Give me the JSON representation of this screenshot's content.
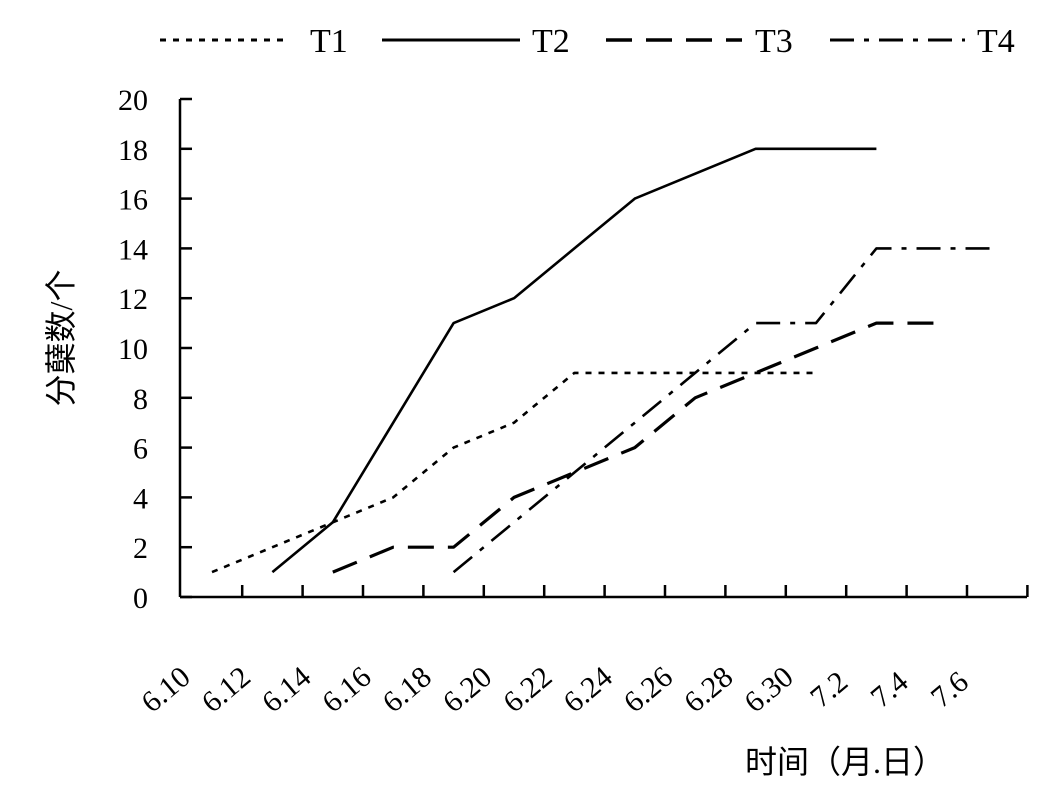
{
  "chart_data": {
    "type": "line",
    "title": "",
    "xlabel": "时间（月.日）",
    "ylabel": "分蘖数/个",
    "ylim": [
      0,
      20
    ],
    "y_ticks": [
      "0",
      "2",
      "4",
      "6",
      "8",
      "10",
      "12",
      "14",
      "16",
      "18",
      "20"
    ],
    "x_tick_labels": [
      "6.10",
      "6.12",
      "6.14",
      "6.16",
      "6.18",
      "6.20",
      "6.22",
      "6.24",
      "6.26",
      "6.28",
      "6.30",
      "7.2",
      "7.4",
      "7.6"
    ],
    "legend_position": "top",
    "grid": false,
    "series": [
      {
        "name": "T1",
        "style": "dotted",
        "color": "#000000",
        "points": [
          {
            "x": "6.11",
            "y": 1
          },
          {
            "x": "6.13",
            "y": 2
          },
          {
            "x": "6.15",
            "y": 3
          },
          {
            "x": "6.17",
            "y": 4
          },
          {
            "x": "6.19",
            "y": 6
          },
          {
            "x": "6.21",
            "y": 7
          },
          {
            "x": "6.23",
            "y": 9
          },
          {
            "x": "6.25",
            "y": 9
          },
          {
            "x": "6.27",
            "y": 9
          },
          {
            "x": "6.29",
            "y": 9
          },
          {
            "x": "7.1",
            "y": 9
          }
        ]
      },
      {
        "name": "T2",
        "style": "solid",
        "color": "#000000",
        "points": [
          {
            "x": "6.13",
            "y": 1
          },
          {
            "x": "6.15",
            "y": 3
          },
          {
            "x": "6.17",
            "y": 7
          },
          {
            "x": "6.19",
            "y": 11
          },
          {
            "x": "6.21",
            "y": 12
          },
          {
            "x": "6.23",
            "y": 14
          },
          {
            "x": "6.25",
            "y": 16
          },
          {
            "x": "6.27",
            "y": 17
          },
          {
            "x": "6.29",
            "y": 18
          },
          {
            "x": "7.1",
            "y": 18
          },
          {
            "x": "7.3",
            "y": 18
          }
        ]
      },
      {
        "name": "T3",
        "style": "dashed",
        "color": "#000000",
        "points": [
          {
            "x": "6.15",
            "y": 1
          },
          {
            "x": "6.17",
            "y": 2
          },
          {
            "x": "6.19",
            "y": 2
          },
          {
            "x": "6.21",
            "y": 4
          },
          {
            "x": "6.23",
            "y": 5
          },
          {
            "x": "6.25",
            "y": 6
          },
          {
            "x": "6.27",
            "y": 8
          },
          {
            "x": "6.29",
            "y": 9
          },
          {
            "x": "7.1",
            "y": 10
          },
          {
            "x": "7.3",
            "y": 11
          },
          {
            "x": "7.5",
            "y": 11
          }
        ]
      },
      {
        "name": "T4",
        "style": "dashdot",
        "color": "#000000",
        "points": [
          {
            "x": "6.19",
            "y": 1
          },
          {
            "x": "6.21",
            "y": 3
          },
          {
            "x": "6.23",
            "y": 5
          },
          {
            "x": "6.25",
            "y": 7
          },
          {
            "x": "6.27",
            "y": 9
          },
          {
            "x": "6.29",
            "y": 11
          },
          {
            "x": "7.1",
            "y": 11
          },
          {
            "x": "7.3",
            "y": 14
          },
          {
            "x": "7.5",
            "y": 14
          },
          {
            "x": "7.7",
            "y": 14
          }
        ]
      }
    ]
  }
}
